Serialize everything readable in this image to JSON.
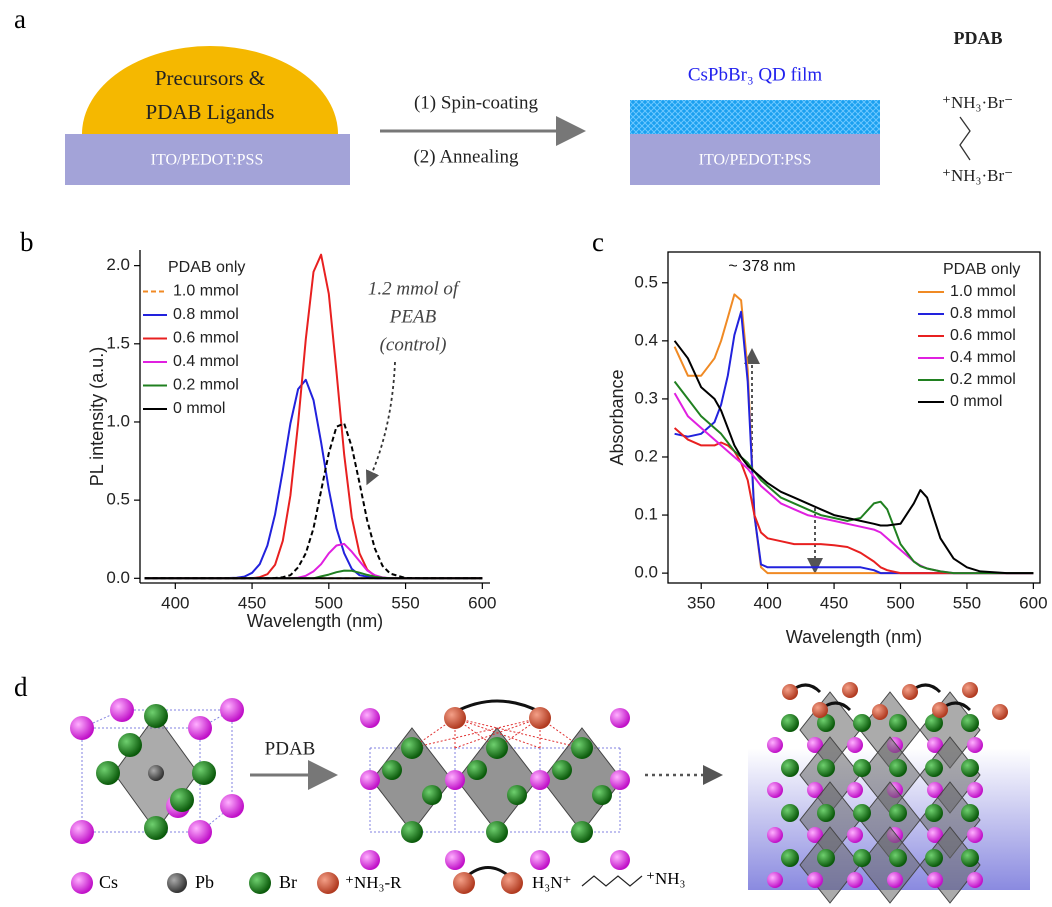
{
  "panel_a": {
    "label": "a",
    "dome_text": [
      "Precursors &",
      "PDAB Ligands"
    ],
    "substrate_left": "ITO/PEDOT:PSS",
    "steps": [
      "(1) Spin-coating",
      "(2) Annealing"
    ],
    "film_label": "CsPbBr₃ QD film",
    "substrate_right": "ITO/PEDOT:PSS",
    "ligand_title": "PDAB",
    "ligand_ends": [
      "⁺NH₃·Br⁻",
      "⁺NH₃·Br⁻"
    ]
  },
  "chart_data": [
    {
      "type": "line",
      "panel_label": "b",
      "x_label": "Wavelength (nm)",
      "y_label": "PL intensity (a.u.)",
      "legend_title": "PDAB only",
      "annotation": [
        "1.2 mmol of",
        "PEAB",
        "(control)"
      ],
      "frame": false,
      "xlim": [
        377,
        605
      ],
      "xticks": [
        400,
        450,
        500,
        550,
        600
      ],
      "ylim": [
        -0.03,
        2.1
      ],
      "yticks": [
        {
          "value": 0,
          "label": "0.0"
        },
        0.5,
        {
          "value": 1,
          "label": "1.0"
        },
        1.5,
        {
          "value": 2,
          "label": "2.0"
        }
      ],
      "x": [
        380,
        400,
        420,
        430,
        440,
        445,
        450,
        455,
        460,
        465,
        470,
        475,
        480,
        485,
        490,
        495,
        500,
        505,
        510,
        515,
        520,
        525,
        530,
        535,
        540,
        550,
        560,
        580,
        600
      ],
      "series": [
        {
          "name": "1.0 mmol",
          "color": "#f08a24",
          "dashed": true,
          "values": [
            0,
            0,
            0,
            0,
            0,
            0,
            0,
            0,
            0,
            0,
            0,
            0,
            0,
            0,
            0,
            0,
            0,
            0,
            0,
            0,
            0,
            0,
            0,
            0,
            0,
            0,
            0,
            0,
            0
          ]
        },
        {
          "name": "0.8 mmol",
          "color": "#2222dd",
          "values": [
            0,
            0,
            0,
            0,
            0.003,
            0.011,
            0.035,
            0.09,
            0.21,
            0.41,
            0.69,
            0.99,
            1.21,
            1.27,
            1.14,
            0.87,
            0.57,
            0.32,
            0.16,
            0.06,
            0.02,
            0.01,
            0,
            0,
            0,
            0,
            0,
            0,
            0
          ]
        },
        {
          "name": "0.6 mmol",
          "color": "#e82020",
          "values": [
            0,
            0,
            0,
            0,
            0,
            0,
            0.001,
            0.007,
            0.026,
            0.087,
            0.24,
            0.53,
            0.99,
            1.53,
            1.96,
            2.07,
            1.82,
            1.32,
            0.79,
            0.39,
            0.16,
            0.055,
            0.015,
            0.004,
            0,
            0,
            0,
            0,
            0
          ]
        },
        {
          "name": "0.4 mmol",
          "color": "#e020e0",
          "values": [
            0,
            0,
            0,
            0,
            0,
            0,
            0,
            0,
            0,
            0,
            0,
            0,
            0.004,
            0.016,
            0.044,
            0.09,
            0.16,
            0.21,
            0.22,
            0.17,
            0.11,
            0.05,
            0.02,
            0.006,
            0.001,
            0,
            0,
            0,
            0
          ]
        },
        {
          "name": "0.2 mmol",
          "color": "#208020",
          "values": [
            0,
            0,
            0,
            0,
            0,
            0,
            0,
            0,
            0,
            0,
            0,
            0,
            0,
            0,
            0,
            0.012,
            0.024,
            0.039,
            0.049,
            0.048,
            0.036,
            0.022,
            0.01,
            0.004,
            0.001,
            0,
            0,
            0,
            0
          ]
        },
        {
          "name": "0 mmol",
          "color": "#000000",
          "values": [
            0,
            0,
            0,
            0,
            0,
            0,
            0,
            0,
            0,
            0,
            0,
            0,
            0,
            0,
            0,
            0,
            0,
            0,
            0,
            0,
            0,
            0,
            0,
            0,
            0,
            0,
            0,
            0,
            0
          ]
        },
        {
          "color": "#000000",
          "dashed": true,
          "values": [
            0,
            0,
            0,
            0,
            0,
            0,
            0,
            0,
            0,
            0.002,
            0.007,
            0.02,
            0.07,
            0.16,
            0.32,
            0.56,
            0.8,
            0.97,
            0.99,
            0.84,
            0.61,
            0.37,
            0.19,
            0.08,
            0.03,
            0.002,
            0,
            0,
            0
          ]
        }
      ]
    },
    {
      "type": "line",
      "panel_label": "c",
      "x_label": "Wavelength (nm)",
      "y_label": "Absorbance",
      "legend_title": "PDAB only",
      "annotation": [
        "~ 378 nm"
      ],
      "frame": true,
      "xlim": [
        325,
        605
      ],
      "xticks": [
        350,
        400,
        450,
        500,
        550,
        600
      ],
      "ylim": [
        -0.017,
        0.553
      ],
      "yticks": [
        {
          "value": 0,
          "label": "0.0"
        },
        0.1,
        0.2,
        0.3,
        0.4,
        0.5
      ],
      "x": [
        330,
        340,
        350,
        360,
        365,
        370,
        375,
        380,
        385,
        390,
        395,
        400,
        410,
        420,
        430,
        440,
        450,
        460,
        470,
        480,
        485,
        490,
        500,
        510,
        515,
        520,
        530,
        540,
        550,
        560,
        580,
        600
      ],
      "series": [
        {
          "name": "1.0 mmol",
          "color": "#f08a24",
          "values": [
            0.39,
            0.34,
            0.34,
            0.37,
            0.4,
            0.44,
            0.48,
            0.47,
            0.35,
            0.1,
            0.01,
            0,
            0,
            0,
            0,
            0,
            0,
            0,
            0,
            0,
            0,
            0,
            0,
            0,
            0,
            0,
            0,
            0,
            0,
            0,
            0,
            0
          ]
        },
        {
          "name": "0.8 mmol",
          "color": "#2222dd",
          "values": [
            0.24,
            0.235,
            0.24,
            0.26,
            0.29,
            0.34,
            0.41,
            0.45,
            0.33,
            0.1,
            0.015,
            0.01,
            0.01,
            0.01,
            0.01,
            0.01,
            0.01,
            0.01,
            0.01,
            0.005,
            0,
            0,
            0,
            0,
            0,
            0,
            0,
            0,
            0,
            0,
            0,
            0
          ]
        },
        {
          "name": "0.6 mmol",
          "color": "#e82020",
          "values": [
            0.25,
            0.23,
            0.22,
            0.22,
            0.225,
            0.22,
            0.21,
            0.19,
            0.16,
            0.1,
            0.07,
            0.06,
            0.055,
            0.05,
            0.05,
            0.05,
            0.048,
            0.045,
            0.035,
            0.02,
            0.01,
            0.005,
            0,
            0,
            0,
            0,
            0,
            0,
            0,
            0,
            0,
            0
          ]
        },
        {
          "name": "0.4 mmol",
          "color": "#e020e0",
          "values": [
            0.31,
            0.27,
            0.25,
            0.23,
            0.22,
            0.21,
            0.2,
            0.19,
            0.18,
            0.165,
            0.15,
            0.14,
            0.12,
            0.11,
            0.1,
            0.095,
            0.09,
            0.085,
            0.08,
            0.075,
            0.07,
            0.06,
            0.04,
            0.02,
            0.013,
            0.008,
            0.003,
            0,
            0,
            0,
            0,
            0
          ]
        },
        {
          "name": "0.2 mmol",
          "color": "#208020",
          "values": [
            0.33,
            0.3,
            0.27,
            0.25,
            0.24,
            0.225,
            0.21,
            0.2,
            0.19,
            0.175,
            0.16,
            0.15,
            0.13,
            0.12,
            0.11,
            0.1,
            0.095,
            0.09,
            0.095,
            0.12,
            0.123,
            0.11,
            0.05,
            0.02,
            0.012,
            0.008,
            0.003,
            0,
            0,
            0,
            0,
            0
          ]
        },
        {
          "name": "0 mmol",
          "color": "#000000",
          "values": [
            0.4,
            0.37,
            0.32,
            0.3,
            0.28,
            0.25,
            0.22,
            0.2,
            0.185,
            0.175,
            0.165,
            0.155,
            0.14,
            0.13,
            0.12,
            0.11,
            0.1,
            0.095,
            0.09,
            0.085,
            0.082,
            0.082,
            0.085,
            0.12,
            0.143,
            0.13,
            0.06,
            0.025,
            0.01,
            0.003,
            0,
            0
          ]
        }
      ]
    }
  ],
  "panel_d": {
    "label": "d",
    "arrow_label": "PDAB",
    "legend": [
      "Cs",
      "Pb",
      "Br",
      "⁺NH₃-R",
      "H₃N⁺",
      "⁺NH₃"
    ]
  }
}
